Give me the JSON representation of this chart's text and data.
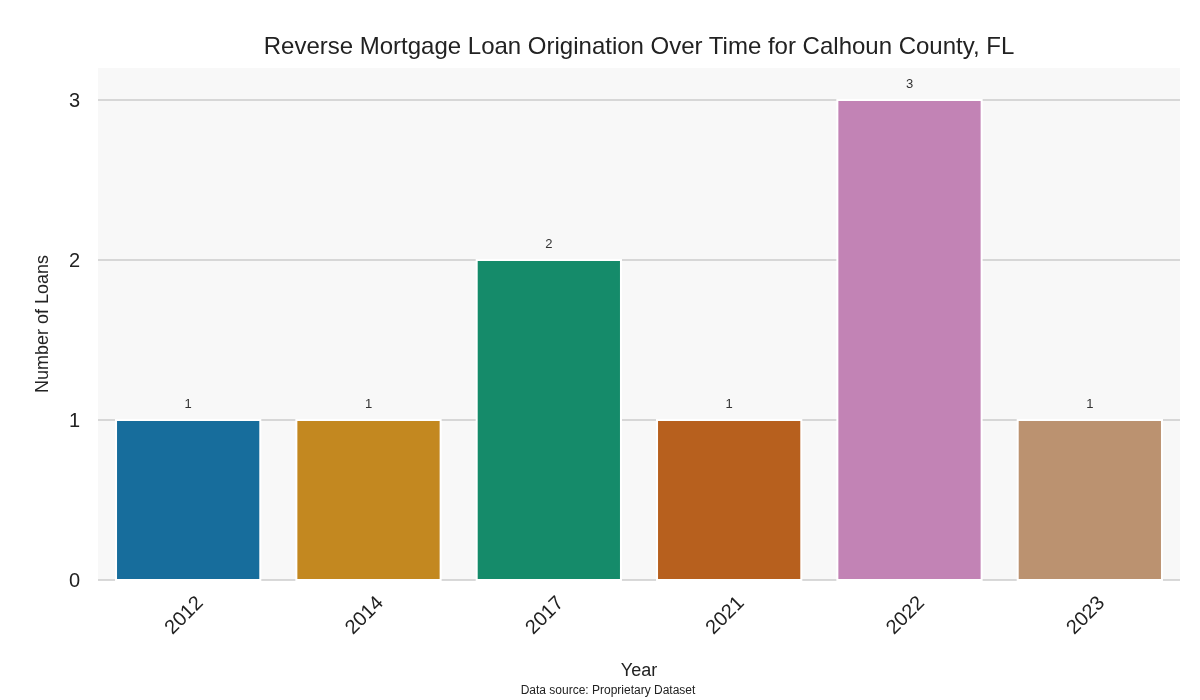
{
  "chart_data": {
    "type": "bar",
    "title": "Reverse Mortgage Loan Origination Over Time for Calhoun County, FL",
    "xlabel": "Year",
    "ylabel": "Number of Loans",
    "categories": [
      "2012",
      "2014",
      "2017",
      "2021",
      "2022",
      "2023"
    ],
    "values": [
      1,
      1,
      2,
      1,
      3,
      1
    ],
    "colors": [
      "#176d9c",
      "#c38820",
      "#158b6a",
      "#b7601e",
      "#c283b5",
      "#bb9270"
    ],
    "ylim": [
      0,
      3.2
    ],
    "yticks": [
      0,
      1,
      2,
      3
    ],
    "grid": "y",
    "data_labels": true,
    "annotations": [
      "Data source: Proprietary Dataset"
    ]
  }
}
